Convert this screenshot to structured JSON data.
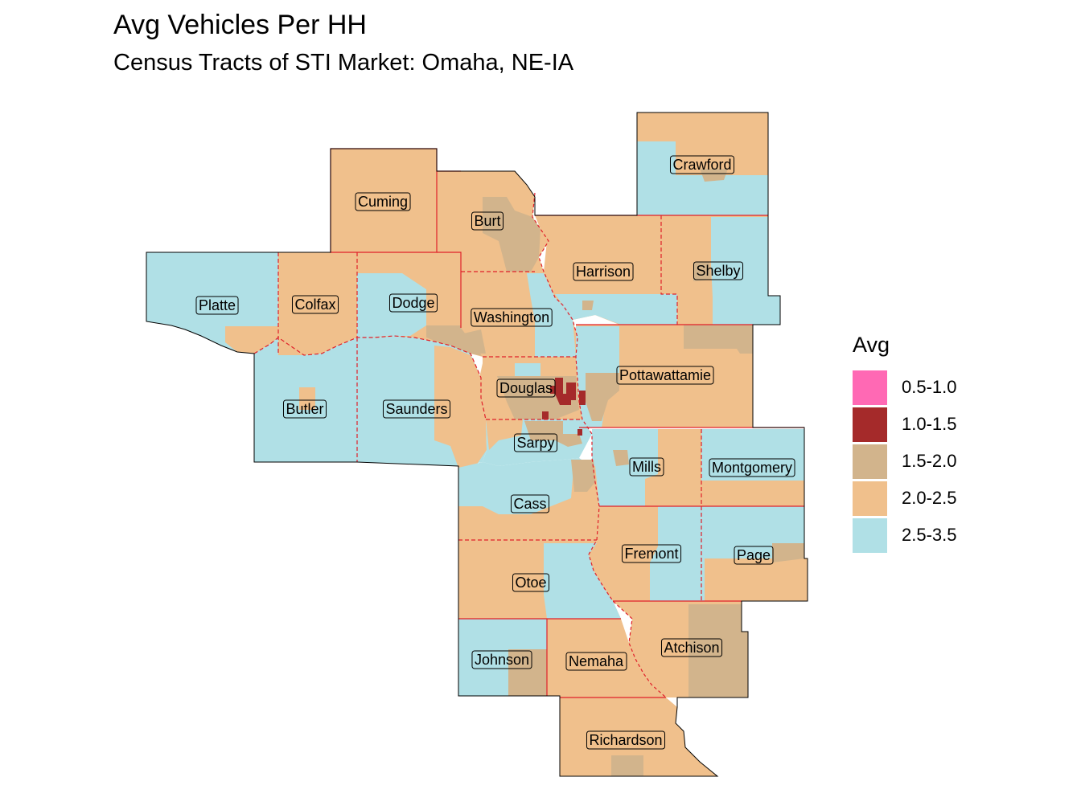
{
  "title": "Avg Vehicles Per HH",
  "subtitle": "Census Tracts of STI Market: Omaha, NE-IA",
  "legend": {
    "title": "Avg",
    "items": [
      {
        "label": "0.5-1.0",
        "color": "#ff69b4"
      },
      {
        "label": "1.0-1.5",
        "color": "#a52a2a"
      },
      {
        "label": "1.5-2.0",
        "color": "#d2b48c"
      },
      {
        "label": "2.0-2.5",
        "color": "#f0c08c"
      },
      {
        "label": "2.5-3.5",
        "color": "#b0e0e6"
      }
    ]
  },
  "counties": [
    {
      "name": "Crawford",
      "category": "2.5-3.5"
    },
    {
      "name": "Cuming",
      "category": "2.0-2.5"
    },
    {
      "name": "Burt",
      "category": "2.0-2.5"
    },
    {
      "name": "Harrison",
      "category": "2.0-2.5"
    },
    {
      "name": "Shelby",
      "category": "2.0-2.5"
    },
    {
      "name": "Platte",
      "category": "2.5-3.5"
    },
    {
      "name": "Colfax",
      "category": "2.0-2.5"
    },
    {
      "name": "Dodge",
      "category": "2.0-2.5"
    },
    {
      "name": "Washington",
      "category": "2.0-2.5"
    },
    {
      "name": "Douglas",
      "category": "2.0-2.5"
    },
    {
      "name": "Pottawattamie",
      "category": "2.0-2.5"
    },
    {
      "name": "Butler",
      "category": "2.5-3.5"
    },
    {
      "name": "Saunders",
      "category": "2.5-3.5"
    },
    {
      "name": "Sarpy",
      "category": "2.5-3.5"
    },
    {
      "name": "Mills",
      "category": "2.5-3.5"
    },
    {
      "name": "Montgomery",
      "category": "2.5-3.5"
    },
    {
      "name": "Cass",
      "category": "2.0-2.5"
    },
    {
      "name": "Fremont",
      "category": "2.0-2.5"
    },
    {
      "name": "Page",
      "category": "2.0-2.5"
    },
    {
      "name": "Otoe",
      "category": "2.0-2.5"
    },
    {
      "name": "Johnson",
      "category": "2.5-3.5"
    },
    {
      "name": "Nemaha",
      "category": "2.0-2.5"
    },
    {
      "name": "Atchison",
      "category": "1.5-2.0"
    },
    {
      "name": "Richardson",
      "category": "2.0-2.5"
    }
  ]
}
